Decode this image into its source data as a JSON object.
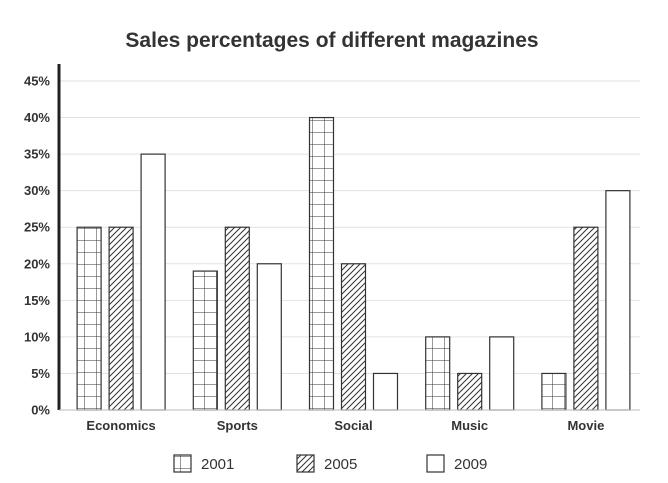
{
  "chart_data": {
    "type": "bar",
    "title": "Sales percentages of different magazines",
    "xlabel": "",
    "ylabel": "",
    "categories": [
      "Economics",
      "Sports",
      "Social",
      "Music",
      "Movie"
    ],
    "series": [
      {
        "name": "2001",
        "pattern": "grid",
        "values": [
          25,
          19,
          40,
          10,
          5
        ]
      },
      {
        "name": "2005",
        "pattern": "hatch",
        "values": [
          25,
          25,
          20,
          5,
          25
        ]
      },
      {
        "name": "2009",
        "pattern": "plain",
        "values": [
          35,
          20,
          5,
          10,
          30
        ]
      }
    ],
    "ylim": [
      0,
      45
    ],
    "yticks": [
      "0%",
      "5%",
      "10%",
      "15%",
      "20%",
      "25%",
      "30%",
      "35%",
      "40%",
      "45%"
    ],
    "ytick_values": [
      0,
      5,
      10,
      15,
      20,
      25,
      30,
      35,
      40,
      45
    ],
    "grid": true,
    "legend_position": "bottom",
    "colors": {
      "stroke": "#333333",
      "fill": "#ffffff",
      "grid": "#e2e2e2",
      "axis": "#222222"
    }
  }
}
